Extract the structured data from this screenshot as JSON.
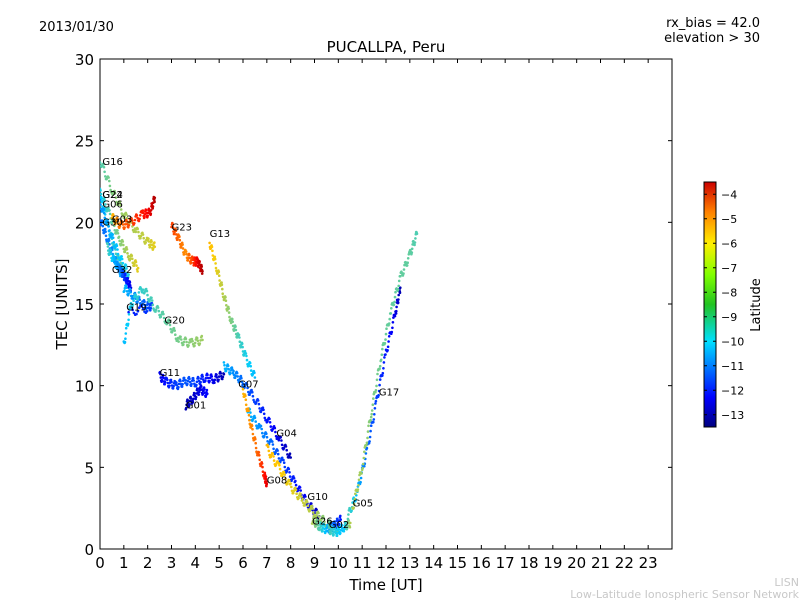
{
  "header": {
    "date": "2013/01/30",
    "bias_line": "rx_bias = 42.0",
    "elevation_line": "elevation > 30"
  },
  "footer": {
    "credit_short": "LISN",
    "credit_long": "Low-Latitude Ionospheric Sensor Network"
  },
  "chart_data": {
    "type": "scatter",
    "title": "PUCALLPA, Peru",
    "xlabel": "Time [UT]",
    "ylabel": "TEC [UNITS]",
    "xlim": [
      0,
      24
    ],
    "ylim": [
      0,
      30
    ],
    "x_ticks": [
      0,
      1,
      2,
      3,
      4,
      5,
      6,
      7,
      8,
      9,
      10,
      11,
      12,
      13,
      14,
      15,
      16,
      17,
      18,
      19,
      20,
      21,
      22,
      23
    ],
    "y_ticks": [
      0,
      5,
      10,
      15,
      20,
      25,
      30
    ],
    "colorbar": {
      "label": "Latitude",
      "min": -13.5,
      "max": -3.5,
      "ticks": [
        -4,
        -5,
        -6,
        -7,
        -8,
        -9,
        -10,
        -11,
        -12,
        -13
      ]
    },
    "series": [
      {
        "name": "G16",
        "label_at": [
          0.1,
          23.5
        ],
        "points": [
          [
            0.0,
            23.8,
            -9
          ],
          [
            0.5,
            22.0,
            -8.5
          ],
          [
            1.0,
            20.5,
            -8.2
          ],
          [
            1.5,
            19.5,
            -8.0
          ],
          [
            2.0,
            18.8,
            -7.8
          ],
          [
            2.3,
            18.5,
            -7.5
          ]
        ]
      },
      {
        "name": "G24",
        "label_at": [
          0.1,
          21.5
        ],
        "points": [
          [
            0.0,
            21.8,
            -9.5
          ],
          [
            0.4,
            20.5,
            -9.0
          ],
          [
            0.8,
            19.0,
            -8.5
          ],
          [
            1.2,
            18.0,
            -8.0
          ],
          [
            1.6,
            17.2,
            -7.5
          ]
        ]
      },
      {
        "name": "G22",
        "label_at": [
          0.1,
          21.5
        ],
        "points": [
          [
            0.0,
            21.6,
            -9.8
          ],
          [
            0.3,
            20.0,
            -9.6
          ],
          [
            0.6,
            18.4,
            -9.2
          ],
          [
            0.9,
            17.2,
            -8.8
          ],
          [
            1.2,
            16.4,
            -8.5
          ]
        ]
      },
      {
        "name": "G06",
        "label_at": [
          0.1,
          20.9
        ],
        "points": [
          [
            0.0,
            21.2,
            -10.5
          ],
          [
            0.4,
            19.5,
            -10.2
          ],
          [
            0.8,
            18.0,
            -9.8
          ],
          [
            1.2,
            16.8,
            -9.5
          ]
        ]
      },
      {
        "name": "G03",
        "label_at": [
          0.5,
          20.0
        ],
        "points": [
          [
            0.5,
            20.3,
            -7
          ],
          [
            0.9,
            19.8,
            -6
          ],
          [
            1.3,
            20.0,
            -5.5
          ],
          [
            1.8,
            20.5,
            -5
          ],
          [
            2.1,
            20.6,
            -4.5
          ],
          [
            2.3,
            21.5,
            -4
          ]
        ]
      },
      {
        "name": "G30",
        "label_at": [
          0.1,
          19.8
        ],
        "points": [
          [
            0.0,
            20.2,
            -11
          ],
          [
            0.3,
            19.0,
            -10.8
          ],
          [
            0.6,
            17.8,
            -10.5
          ],
          [
            0.9,
            16.8,
            -10.2
          ]
        ]
      },
      {
        "name": "G32",
        "label_at": [
          0.5,
          16.9
        ],
        "points": [
          [
            0.3,
            18.5,
            -9
          ],
          [
            0.6,
            17.6,
            -10
          ],
          [
            0.9,
            17.0,
            -11
          ],
          [
            1.1,
            16.5,
            -12
          ],
          [
            1.3,
            16.0,
            -12.5
          ]
        ]
      },
      {
        "name": "G19",
        "label_at": [
          1.1,
          14.6
        ],
        "points": [
          [
            1.0,
            16.0,
            -10
          ],
          [
            1.4,
            15.5,
            -10.5
          ],
          [
            1.8,
            15.0,
            -11
          ],
          [
            2.2,
            14.8,
            -11.5
          ],
          [
            1.2,
            14.5,
            -12
          ]
        ]
      },
      {
        "name": "G20",
        "label_at": [
          2.7,
          13.8
        ],
        "points": [
          [
            1.0,
            12.5,
            -10
          ],
          [
            1.3,
            15.0,
            -9.5
          ],
          [
            1.8,
            16.0,
            -9.2
          ],
          [
            2.3,
            14.8,
            -9.0
          ],
          [
            2.8,
            14.0,
            -8.8
          ],
          [
            3.3,
            12.8,
            -8.6
          ],
          [
            3.8,
            12.6,
            -8.4
          ],
          [
            4.3,
            12.8,
            -8.2
          ]
        ]
      },
      {
        "name": "G23",
        "label_at": [
          3.0,
          19.5
        ],
        "points": [
          [
            3.0,
            19.8,
            -5.5
          ],
          [
            3.3,
            19.0,
            -6
          ],
          [
            3.6,
            18.0,
            -6.5
          ],
          [
            3.9,
            17.6,
            -5.5
          ],
          [
            4.1,
            17.6,
            -4.5
          ],
          [
            4.3,
            17.0,
            -4
          ]
        ]
      },
      {
        "name": "G13",
        "label_at": [
          4.6,
          19.1
        ],
        "points": [
          [
            4.6,
            18.8,
            -7
          ],
          [
            4.9,
            17.2,
            -7.5
          ],
          [
            5.2,
            15.5,
            -8
          ],
          [
            5.5,
            14.0,
            -8.5
          ],
          [
            5.8,
            13.0,
            -9
          ],
          [
            6.1,
            11.8,
            -9.5
          ],
          [
            6.5,
            10.5,
            -10
          ]
        ]
      },
      {
        "name": "G11",
        "label_at": [
          2.5,
          10.6
        ],
        "points": [
          [
            2.5,
            10.6,
            -12.5
          ],
          [
            2.8,
            10.2,
            -12
          ],
          [
            3.2,
            10.0,
            -11.5
          ],
          [
            3.6,
            10.3,
            -11.2
          ],
          [
            4.0,
            10.2,
            -11.5
          ],
          [
            4.4,
            10.5,
            -12
          ],
          [
            4.8,
            10.4,
            -12.5
          ],
          [
            5.2,
            10.7,
            -13
          ]
        ]
      },
      {
        "name": "G01",
        "label_at": [
          3.6,
          8.6
        ],
        "points": [
          [
            3.6,
            8.8,
            -13
          ],
          [
            3.9,
            9.2,
            -12.8
          ],
          [
            4.2,
            9.8,
            -12.5
          ],
          [
            4.5,
            9.5,
            -12.2
          ]
        ]
      },
      {
        "name": "G07",
        "label_at": [
          5.8,
          9.9
        ],
        "points": [
          [
            5.2,
            11.2,
            -10
          ],
          [
            5.6,
            10.8,
            -10.5
          ],
          [
            6.0,
            10.2,
            -11
          ],
          [
            6.5,
            9.2,
            -11.5
          ],
          [
            7.0,
            8.0,
            -12
          ],
          [
            7.5,
            6.8,
            -12.5
          ],
          [
            8.0,
            5.6,
            -13
          ]
        ]
      },
      {
        "name": "G04",
        "label_at": [
          7.4,
          6.9
        ],
        "points": [
          [
            6.2,
            8.5,
            -10
          ],
          [
            6.7,
            7.4,
            -10.5
          ],
          [
            7.2,
            6.4,
            -11
          ],
          [
            7.7,
            5.2,
            -11.5
          ],
          [
            8.2,
            4.0,
            -12
          ],
          [
            8.7,
            2.8,
            -12.5
          ],
          [
            9.2,
            2.0,
            -13
          ]
        ]
      },
      {
        "name": "G08",
        "label_at": [
          7.0,
          4.0
        ],
        "points": [
          [
            6.0,
            9.8,
            -7
          ],
          [
            6.3,
            7.8,
            -6.5
          ],
          [
            6.6,
            6.0,
            -6
          ],
          [
            6.9,
            4.5,
            -5
          ],
          [
            7.0,
            4.0,
            -4.5
          ]
        ]
      },
      {
        "name": "G10",
        "label_at": [
          8.7,
          3.0
        ],
        "points": [
          [
            7.0,
            6.2,
            -7
          ],
          [
            7.5,
            5.0,
            -7.2
          ],
          [
            8.0,
            3.8,
            -7.5
          ],
          [
            8.5,
            3.0,
            -7.8
          ],
          [
            9.0,
            2.2,
            -8
          ],
          [
            9.5,
            1.6,
            -8.5
          ],
          [
            10.0,
            1.2,
            -9
          ]
        ]
      },
      {
        "name": "G26",
        "label_at": [
          8.9,
          1.5
        ],
        "points": [
          [
            8.9,
            1.8,
            -8
          ],
          [
            9.2,
            1.4,
            -9
          ],
          [
            9.5,
            1.2,
            -10
          ],
          [
            9.8,
            1.4,
            -11
          ],
          [
            10.1,
            1.8,
            -12
          ]
        ]
      },
      {
        "name": "G02",
        "label_at": [
          9.6,
          1.3
        ],
        "points": [
          [
            9.6,
            1.2,
            -9
          ],
          [
            9.9,
            1.0,
            -9.5
          ],
          [
            10.2,
            1.3,
            -10
          ],
          [
            10.5,
            1.6,
            -8
          ]
        ]
      },
      {
        "name": "G05",
        "label_at": [
          10.6,
          2.6
        ],
        "points": [
          [
            10.4,
            2.0,
            -9
          ],
          [
            10.8,
            3.5,
            -10
          ],
          [
            11.2,
            6.0,
            -11
          ],
          [
            11.6,
            9.0,
            -11.5
          ],
          [
            12.0,
            12.0,
            -12
          ],
          [
            12.4,
            14.5,
            -12.5
          ],
          [
            12.6,
            16.0,
            -13
          ]
        ]
      },
      {
        "name": "G17",
        "label_at": [
          11.7,
          9.4
        ],
        "points": [
          [
            10.6,
            2.5,
            -8
          ],
          [
            11.0,
            5.0,
            -8.2
          ],
          [
            11.4,
            8.5,
            -8.5
          ],
          [
            11.8,
            11.8,
            -8.7
          ],
          [
            12.2,
            14.5,
            -8.8
          ],
          [
            12.6,
            16.6,
            -8.8
          ],
          [
            13.0,
            18.0,
            -8.8
          ],
          [
            13.3,
            19.3,
            -9
          ]
        ]
      }
    ]
  }
}
